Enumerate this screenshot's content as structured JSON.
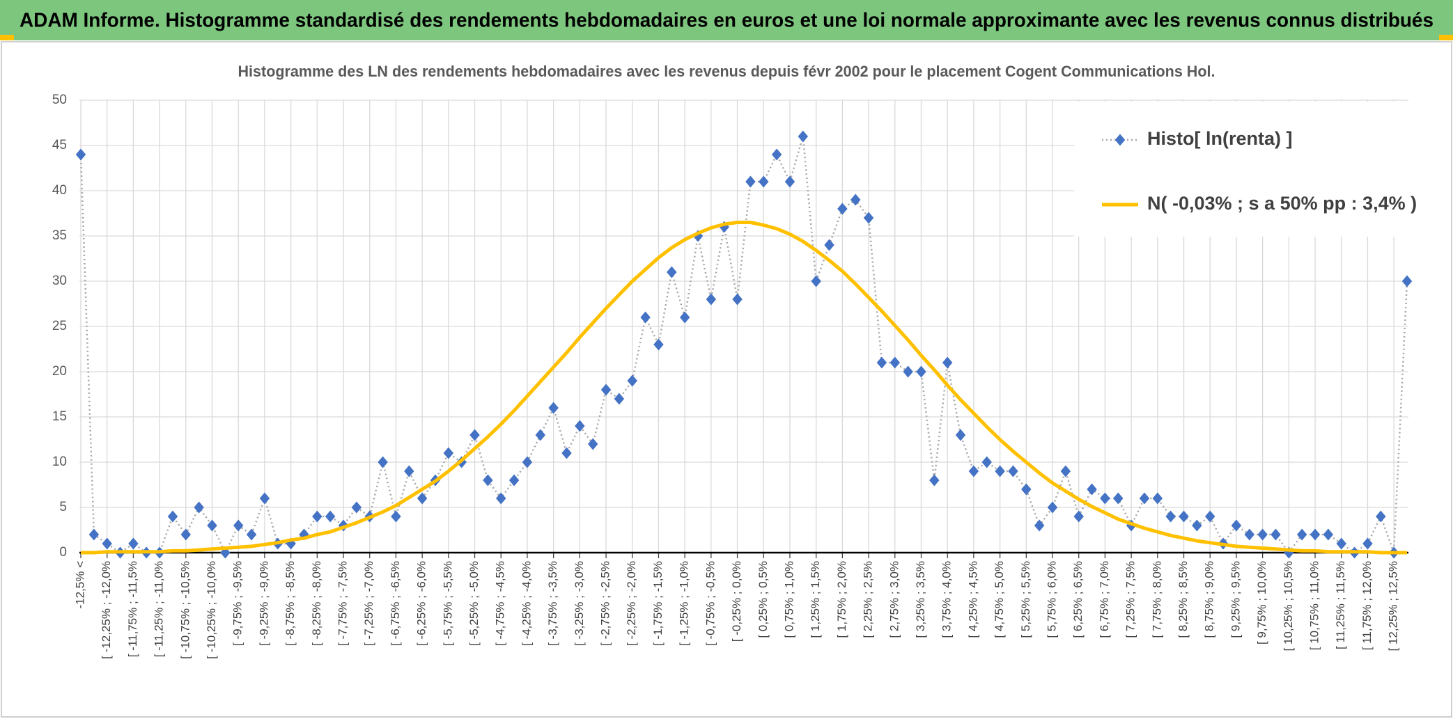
{
  "title": "ADAM Informe. Histogramme standardisé des rendements hebdomadaires en euros et une loi normale approximante avec les revenus connus distribués",
  "chart_data": {
    "type": "line",
    "title": "Histogramme des LN des rendements hebdomadaires avec les revenus depuis févr 2002 pour le placement Cogent Communications Hol.",
    "categories": [
      "-12,5% <",
      null,
      "[ -12,25% ; -12,0%",
      null,
      "[ -11,75% ; -11,5%",
      null,
      "[ -11,25% ; -11,0%",
      null,
      "[ -10,75% ; -10,5%",
      null,
      "[ -10,25% ; -10,0%",
      null,
      "[ -9,75% ; -9,5%",
      null,
      "[ -9,25% ; -9,0%",
      null,
      "[ -8,75% ; -8,5%",
      null,
      "[ -8,25% ; -8,0%",
      null,
      "[ -7,75% ; -7,5%",
      null,
      "[ -7,25% ; -7,0%",
      null,
      "[ -6,75% ; -6,5%",
      null,
      "[ -6,25% ; -6,0%",
      null,
      "[ -5,75% ; -5,5%",
      null,
      "[ -5,25% ; -5,0%",
      null,
      "[ -4,75% ; -4,5%",
      null,
      "[ -4,25% ; -4,0%",
      null,
      "[ -3,75% ; -3,5%",
      null,
      "[ -3,25% ; -3,0%",
      null,
      "[ -2,75% ; -2,5%",
      null,
      "[ -2,25% ; -2,0%",
      null,
      "[ -1,75% ; -1,5%",
      null,
      "[ -1,25% ; -1,0%",
      null,
      "[ -0,75% ; -0,5%",
      null,
      "[ -0,25% ; 0,0%",
      null,
      "[ 0,25% ; 0,5%",
      null,
      "[ 0,75% ; 1,0%",
      null,
      "[ 1,25% ; 1,5%",
      null,
      "[ 1,75% ; 2,0%",
      null,
      "[ 2,25% ; 2,5%",
      null,
      "[ 2,75% ; 3,0%",
      null,
      "[ 3,25% ; 3,5%",
      null,
      "[ 3,75% ; 4,0%",
      null,
      "[ 4,25% ; 4,5%",
      null,
      "[ 4,75% ; 5,0%",
      null,
      "[ 5,25% ; 5,5%",
      null,
      "[ 5,75% ; 6,0%",
      null,
      "[ 6,25% ; 6,5%",
      null,
      "[ 6,75% ; 7,0%",
      null,
      "[ 7,25% ; 7,5%",
      null,
      "[ 7,75% ; 8,0%",
      null,
      "[ 8,25% ; 8,5%",
      null,
      "[ 8,75% ; 9,0%",
      null,
      "[ 9,25% ; 9,5%",
      null,
      "[ 9,75% ; 10,0%",
      null,
      "[ 10,25% ; 10,5%",
      null,
      "[ 10,75% ; 11,0%",
      null,
      "[ 11,25% ; 11,5%",
      null,
      "[ 11,75% ; 12,0%",
      null,
      "[ 12,25% ; 12,5%",
      null
    ],
    "series": [
      {
        "name": "Histo[ ln(renta) ]",
        "color": "#4472c4",
        "line_color": "#a6a6a6",
        "values": [
          44,
          2,
          1,
          0,
          1,
          0,
          0,
          4,
          2,
          5,
          3,
          0,
          3,
          2,
          6,
          1,
          1,
          2,
          4,
          4,
          3,
          5,
          4,
          10,
          4,
          9,
          6,
          8,
          11,
          10,
          13,
          8,
          6,
          8,
          10,
          13,
          16,
          11,
          14,
          12,
          18,
          17,
          19,
          26,
          23,
          31,
          26,
          35,
          28,
          36,
          28,
          41,
          41,
          44,
          41,
          46,
          30,
          34,
          38,
          39,
          37,
          21,
          21,
          20,
          20,
          8,
          21,
          13,
          9,
          10,
          9,
          9,
          7,
          3,
          5,
          9,
          4,
          7,
          6,
          6,
          3,
          6,
          6,
          4,
          4,
          3,
          4,
          1,
          3,
          2,
          2,
          2,
          0,
          2,
          2,
          2,
          1,
          0,
          1,
          4,
          0,
          30
        ]
      },
      {
        "name": "N( -0,03% ; s a 50% pp : 3,4% )",
        "color": "#ffc000",
        "values": [
          0.0,
          0.0,
          0.1,
          0.1,
          0.1,
          0.1,
          0.1,
          0.2,
          0.2,
          0.3,
          0.4,
          0.5,
          0.6,
          0.7,
          0.9,
          1.1,
          1.4,
          1.6,
          2.0,
          2.3,
          2.8,
          3.3,
          3.9,
          4.5,
          5.2,
          6.1,
          7.0,
          7.9,
          9.0,
          10.2,
          11.5,
          12.8,
          14.2,
          15.7,
          17.3,
          18.9,
          20.5,
          22.1,
          23.8,
          25.4,
          27.0,
          28.5,
          30.0,
          31.3,
          32.6,
          33.7,
          34.6,
          35.3,
          35.9,
          36.3,
          36.5,
          36.5,
          36.2,
          35.8,
          35.2,
          34.4,
          33.4,
          32.3,
          31.1,
          29.7,
          28.2,
          26.7,
          25.1,
          23.5,
          21.8,
          20.2,
          18.5,
          16.9,
          15.4,
          13.9,
          12.5,
          11.2,
          10.0,
          8.8,
          7.7,
          6.8,
          5.9,
          5.1,
          4.4,
          3.7,
          3.2,
          2.7,
          2.3,
          1.9,
          1.6,
          1.3,
          1.1,
          0.9,
          0.7,
          0.6,
          0.5,
          0.4,
          0.3,
          0.2,
          0.2,
          0.1,
          0.1,
          0.1,
          0.1,
          0.0,
          0.0,
          0.0
        ]
      }
    ],
    "ylim": [
      0,
      50
    ],
    "yticks": [
      0,
      5,
      10,
      15,
      20,
      25,
      30,
      35,
      40,
      45,
      50
    ],
    "grid": true,
    "legend": "top-right"
  }
}
